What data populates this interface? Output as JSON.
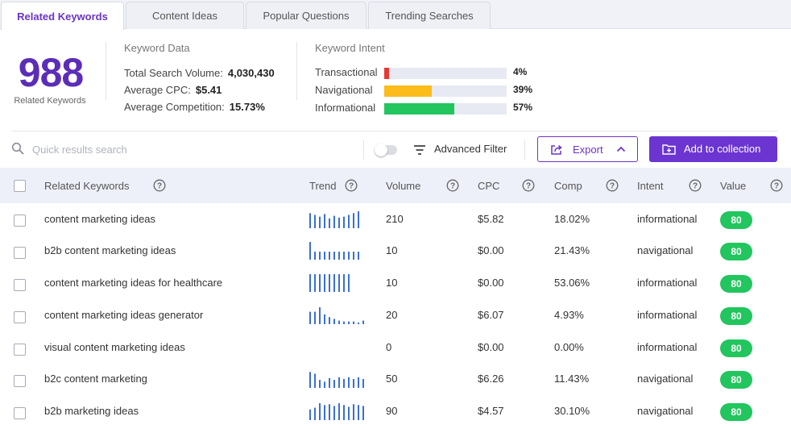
{
  "tabs": [
    {
      "label": "Related Keywords",
      "active": true
    },
    {
      "label": "Content Ideas",
      "active": false
    },
    {
      "label": "Popular Questions",
      "active": false
    },
    {
      "label": "Trending Searches",
      "active": false
    }
  ],
  "summary": {
    "count": "988",
    "count_label": "Related Keywords",
    "keyword_data": {
      "title": "Keyword Data",
      "total_search_volume_label": "Total Search Volume:",
      "total_search_volume": "4,030,430",
      "average_cpc_label": "Average CPC:",
      "average_cpc": "$5.41",
      "average_competition_label": "Average Competition:",
      "average_competition": "15.73%"
    },
    "keyword_intent": {
      "title": "Keyword Intent",
      "items": [
        {
          "label": "Transactional",
          "pct_text": "4%",
          "fraction": 0.04,
          "color": "#e53935"
        },
        {
          "label": "Navigational",
          "pct_text": "39%",
          "fraction": 0.39,
          "color": "#fbbc1c"
        },
        {
          "label": "Informational",
          "pct_text": "57%",
          "fraction": 0.57,
          "color": "#22c55e"
        }
      ]
    }
  },
  "toolbar": {
    "search_placeholder": "Quick results search",
    "advanced_filter_label": "Advanced Filter",
    "export_label": "Export",
    "add_collection_label": "Add to collection"
  },
  "table": {
    "columns": {
      "keyword": "Related Keywords",
      "trend": "Trend",
      "volume": "Volume",
      "cpc": "CPC",
      "comp": "Comp",
      "intent": "Intent",
      "value": "Value"
    },
    "rows": [
      {
        "keyword": "content marketing ideas",
        "trend": [
          0.85,
          0.75,
          0.65,
          0.8,
          0.55,
          0.7,
          0.6,
          0.65,
          0.75,
          0.85,
          0.95
        ],
        "volume": "210",
        "cpc": "$5.82",
        "comp": "18.02%",
        "intent": "informational",
        "value": "80"
      },
      {
        "keyword": "b2b content marketing ideas",
        "trend": [
          1.0,
          0.45,
          0.45,
          0.45,
          0.45,
          0.45,
          0.45,
          0.45,
          0.45,
          0.45,
          0.45
        ],
        "volume": "10",
        "cpc": "$0.00",
        "comp": "21.43%",
        "intent": "navigational",
        "value": "80"
      },
      {
        "keyword": "content marketing ideas for healthcare",
        "trend": [
          1.0,
          1.0,
          1.0,
          1.0,
          1.0,
          1.0,
          1.0,
          1.0,
          1.0
        ],
        "volume": "10",
        "cpc": "$0.00",
        "comp": "53.06%",
        "intent": "informational",
        "value": "80"
      },
      {
        "keyword": "content marketing ideas generator",
        "trend": [
          0.7,
          0.7,
          0.95,
          0.55,
          0.4,
          0.3,
          0.2,
          0.15,
          0.15,
          0.15,
          0,
          0.2
        ],
        "volume": "20",
        "cpc": "$6.07",
        "comp": "4.93%",
        "intent": "informational",
        "value": "80"
      },
      {
        "keyword": "visual content marketing ideas",
        "trend": [],
        "volume": "0",
        "cpc": "$0.00",
        "comp": "0.00%",
        "intent": "informational",
        "value": "80"
      },
      {
        "keyword": "b2c content marketing",
        "trend": [
          0.9,
          0.8,
          0.45,
          0.35,
          0.55,
          0.45,
          0.6,
          0.5,
          0.6,
          0.5,
          0.6,
          0.5
        ],
        "volume": "50",
        "cpc": "$6.26",
        "comp": "11.43%",
        "intent": "navigational",
        "value": "80"
      },
      {
        "keyword": "b2b marketing ideas",
        "trend": [
          0.6,
          0.7,
          0.95,
          0.85,
          0.9,
          0.8,
          0.95,
          0.85,
          0.75,
          0.9,
          0.85,
          0.8
        ],
        "volume": "90",
        "cpc": "$4.57",
        "comp": "30.10%",
        "intent": "navigational",
        "value": "80"
      }
    ]
  },
  "colors": {
    "accent": "#6a35c7",
    "trend_bar": "#3b6fd4",
    "value_badge": "#22c55e"
  }
}
